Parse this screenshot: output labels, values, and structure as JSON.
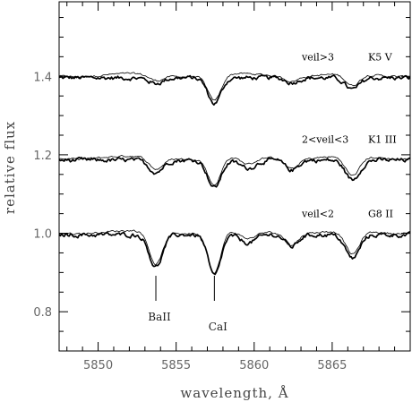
{
  "chart_data": {
    "type": "line",
    "xlabel": "wavelength, Å",
    "ylabel": "relative flux",
    "xlim": [
      5847.5,
      5870.0
    ],
    "ylim": [
      0.7,
      1.59
    ],
    "x_major_ticks": [
      5850,
      5855,
      5860,
      5865
    ],
    "x_tick_labels": [
      "5850",
      "5855",
      "5860",
      "5865"
    ],
    "x_minor_step": 1,
    "y_major_ticks": [
      0.8,
      1.0,
      1.2,
      1.4
    ],
    "y_tick_labels": [
      "0.8",
      "1.0",
      "1.2",
      "1.4"
    ],
    "y_minor_step": 0.05,
    "grid": false,
    "groups": [
      {
        "veil_label": "veil>3",
        "template_label": "K5 V",
        "continuum": 1.4,
        "lines": [
          {
            "center": 5853.7,
            "depth": 0.014,
            "width": 0.45
          },
          {
            "center": 5857.45,
            "depth": 0.065,
            "width": 0.42
          },
          {
            "center": 5862.4,
            "depth": 0.012,
            "width": 0.4
          },
          {
            "center": 5866.3,
            "depth": 0.03,
            "width": 0.45
          }
        ]
      },
      {
        "veil_label": "2<veil<3",
        "template_label": "K1 III",
        "continuum": 1.19,
        "lines": [
          {
            "center": 5853.7,
            "depth": 0.03,
            "width": 0.45
          },
          {
            "center": 5857.45,
            "depth": 0.07,
            "width": 0.42
          },
          {
            "center": 5859.6,
            "depth": 0.02,
            "width": 0.5
          },
          {
            "center": 5862.4,
            "depth": 0.025,
            "width": 0.4
          },
          {
            "center": 5866.3,
            "depth": 0.05,
            "width": 0.45
          }
        ]
      },
      {
        "veil_label": "veil<2",
        "template_label": "G8 II",
        "continuum": 1.0,
        "lines": [
          {
            "center": 5853.7,
            "depth": 0.082,
            "width": 0.42
          },
          {
            "center": 5857.45,
            "depth": 0.105,
            "width": 0.4
          },
          {
            "center": 5859.6,
            "depth": 0.02,
            "width": 0.5
          },
          {
            "center": 5862.4,
            "depth": 0.03,
            "width": 0.4
          },
          {
            "center": 5866.3,
            "depth": 0.06,
            "width": 0.45
          }
        ]
      }
    ],
    "series": [
      {
        "name": "",
        "style": "observed (thick)"
      },
      {
        "name": "",
        "style": "template (thin)"
      }
    ],
    "annotations": [
      {
        "text": "BaII",
        "x": 5853.7
      },
      {
        "text": "CaI",
        "x": 5857.45
      }
    ]
  }
}
